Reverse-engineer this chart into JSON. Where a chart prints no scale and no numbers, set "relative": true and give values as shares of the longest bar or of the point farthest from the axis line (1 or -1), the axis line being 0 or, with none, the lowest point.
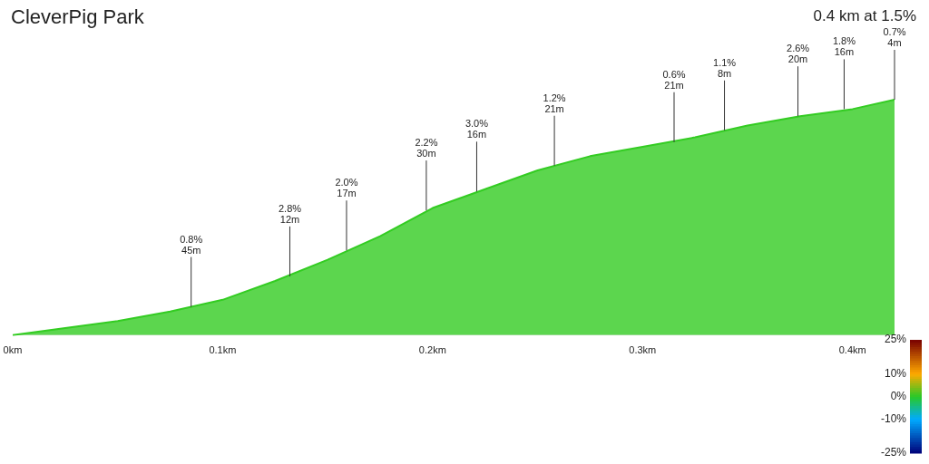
{
  "chart_data": {
    "type": "area",
    "title": "CleverPig Park",
    "subtitle": "0.4 km at 1.5%",
    "relative": true,
    "x": [
      0,
      0.025,
      0.05,
      0.075,
      0.1,
      0.125,
      0.15,
      0.175,
      0.2,
      0.225,
      0.25,
      0.275,
      0.3,
      0.325,
      0.35,
      0.375,
      0.4,
      0.42
    ],
    "series": [
      {
        "color": "#33cc22",
        "values": [
          0,
          0.03,
          0.06,
          0.1,
          0.15,
          0.23,
          0.32,
          0.42,
          0.54,
          0.62,
          0.7,
          0.76,
          0.8,
          0.84,
          0.89,
          0.93,
          0.96,
          1
        ]
      }
    ],
    "xlim": [
      0,
      0.42
    ],
    "xticks": [
      {
        "value": 0,
        "label": "0km"
      },
      {
        "value": 0.1,
        "label": "0.1km"
      },
      {
        "value": 0.2,
        "label": "0.2km"
      },
      {
        "value": 0.3,
        "label": "0.3km"
      },
      {
        "value": 0.4,
        "label": "0.4km"
      }
    ],
    "grid": false,
    "clim": [
      -25,
      25
    ],
    "cticks": [
      {
        "value": 25,
        "label": "25%"
      },
      {
        "value": 10,
        "label": "10%"
      },
      {
        "value": 0,
        "label": "0%"
      },
      {
        "value": -10,
        "label": "-10%"
      },
      {
        "value": -25,
        "label": "-25%"
      }
    ],
    "annotations": [
      {
        "text": "0.8%\n45m",
        "x": 0.085,
        "y": 0.12
      },
      {
        "text": "2.8%\n12m",
        "x": 0.132,
        "y": 0.25
      },
      {
        "text": "2.0%\n17m",
        "x": 0.159,
        "y": 0.36
      },
      {
        "text": "2.2%\n30m",
        "x": 0.197,
        "y": 0.53
      },
      {
        "text": "3.0%\n16m",
        "x": 0.221,
        "y": 0.61
      },
      {
        "text": "1.2%\n21m",
        "x": 0.258,
        "y": 0.72
      },
      {
        "text": "0.6%\n21m",
        "x": 0.315,
        "y": 0.82
      },
      {
        "text": "1.1%\n8m",
        "x": 0.339,
        "y": 0.87
      },
      {
        "text": "2.6%\n20m",
        "x": 0.374,
        "y": 0.93
      },
      {
        "text": "1.8%\n16m",
        "x": 0.396,
        "y": 0.96
      },
      {
        "text": "0.7%\n4m",
        "x": 0.42,
        "y": 1
      }
    ]
  }
}
